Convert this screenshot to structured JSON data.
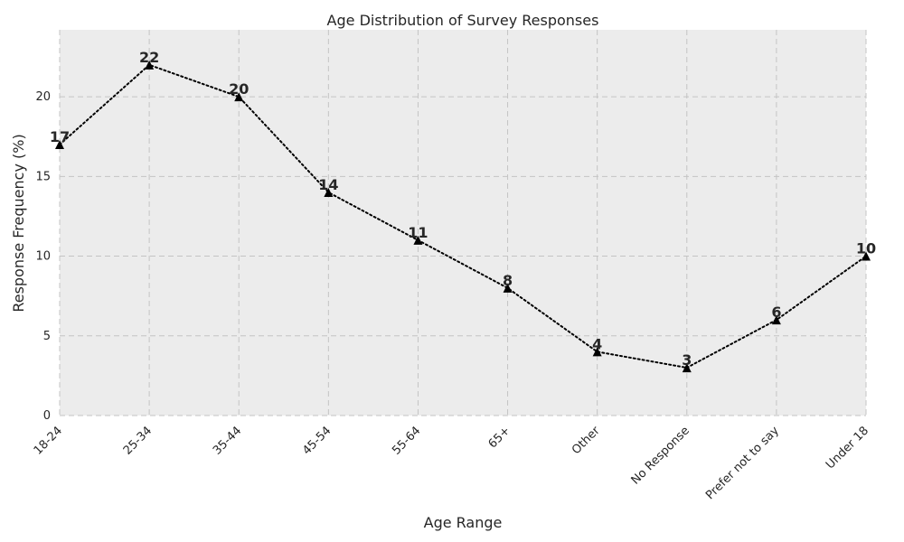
{
  "chart_data": {
    "type": "line",
    "title": "Age Distribution of Survey Responses",
    "xlabel": "Age Range",
    "ylabel": "Response Frequency (%)",
    "categories": [
      "18-24",
      "25-34",
      "35-44",
      "45-54",
      "55-64",
      "65+",
      "Other",
      "No Response",
      "Prefer not to say",
      "Under 18"
    ],
    "series": [
      {
        "values": [
          17,
          22,
          20,
          14,
          11,
          8,
          4,
          3,
          6,
          10
        ]
      }
    ],
    "ylim": [
      0,
      24.2
    ],
    "yticks": [
      0,
      5,
      10,
      15,
      20
    ],
    "grid": true,
    "colors": {
      "background": "#ececec",
      "line": "#000000",
      "marker": "#000000",
      "grid": "#c4c4c4"
    },
    "marker": "triangle",
    "line_style": "dotted",
    "data_labels": true
  }
}
